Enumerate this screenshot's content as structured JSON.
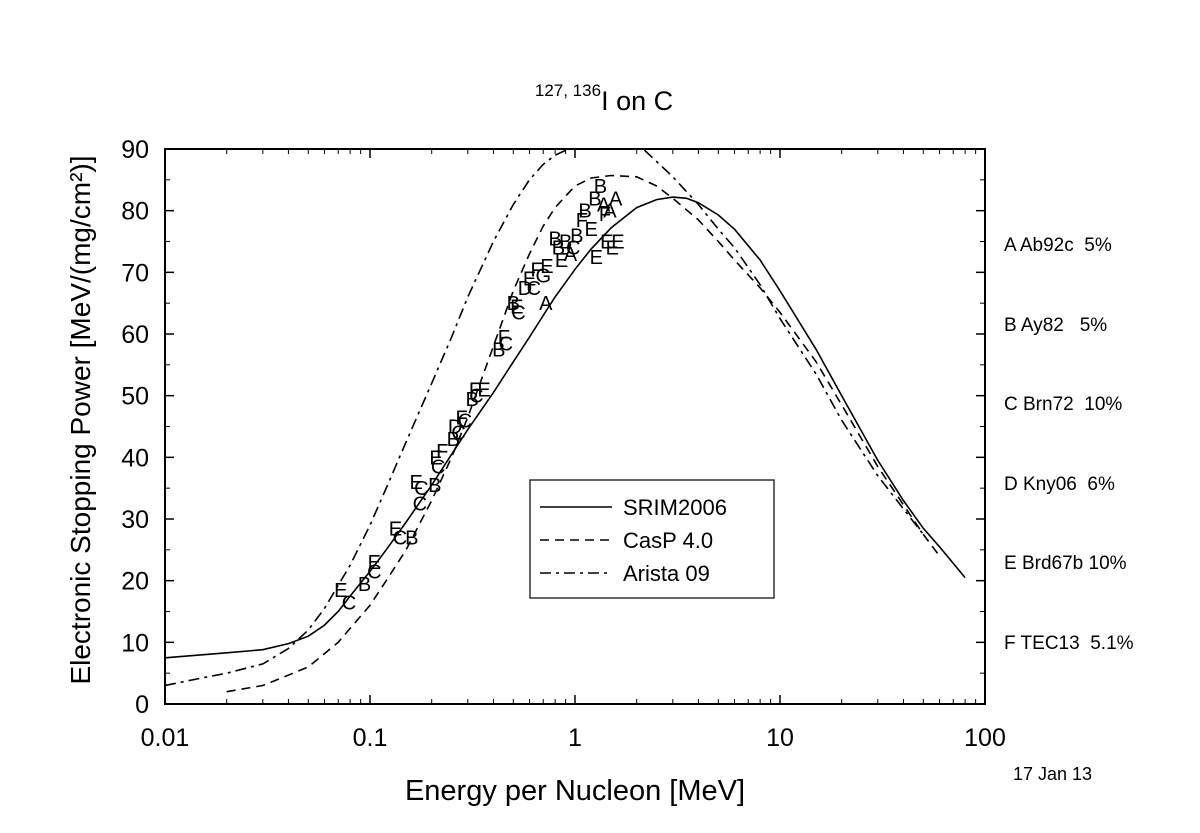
{
  "chart_data": {
    "type": "line",
    "title": {
      "sup": "127, 136",
      "main": "I on C"
    },
    "xlabel": "Energy per Nucleon [MeV]",
    "ylabel": "Electronic Stopping Power [MeV/(mg/cm²)]",
    "xscale": "log",
    "xlim": [
      0.01,
      100
    ],
    "ylim": [
      0,
      90
    ],
    "xticks": [
      {
        "value": 0.01,
        "label": "0.01"
      },
      {
        "value": 0.1,
        "label": "0.1"
      },
      {
        "value": 1,
        "label": "1"
      },
      {
        "value": 10,
        "label": "10"
      },
      {
        "value": 100,
        "label": "100"
      }
    ],
    "yticks": [
      {
        "value": 0,
        "label": "0"
      },
      {
        "value": 10,
        "label": "10"
      },
      {
        "value": 20,
        "label": "20"
      },
      {
        "value": 30,
        "label": "30"
      },
      {
        "value": 40,
        "label": "40"
      },
      {
        "value": 50,
        "label": "50"
      },
      {
        "value": 60,
        "label": "60"
      },
      {
        "value": 70,
        "label": "70"
      },
      {
        "value": 80,
        "label": "80"
      },
      {
        "value": 90,
        "label": "90"
      }
    ],
    "grid": false,
    "legend_position": "center",
    "series": [
      {
        "name": "SRIM2006",
        "style": "solid",
        "points": [
          [
            0.01,
            7.5
          ],
          [
            0.02,
            8.3
          ],
          [
            0.03,
            8.8
          ],
          [
            0.04,
            9.8
          ],
          [
            0.05,
            11
          ],
          [
            0.06,
            12.8
          ],
          [
            0.07,
            15
          ],
          [
            0.08,
            17.5
          ],
          [
            0.1,
            21.5
          ],
          [
            0.12,
            25
          ],
          [
            0.15,
            29.5
          ],
          [
            0.2,
            35.5
          ],
          [
            0.25,
            40.5
          ],
          [
            0.3,
            44.5
          ],
          [
            0.4,
            50.5
          ],
          [
            0.5,
            55.5
          ],
          [
            0.6,
            59.5
          ],
          [
            0.7,
            63
          ],
          [
            0.8,
            66
          ],
          [
            1,
            70.5
          ],
          [
            1.2,
            73.8
          ],
          [
            1.5,
            77.2
          ],
          [
            2,
            80.5
          ],
          [
            2.5,
            81.8
          ],
          [
            3,
            82.2
          ],
          [
            3.5,
            82
          ],
          [
            4,
            81.3
          ],
          [
            5,
            79.3
          ],
          [
            6,
            77
          ],
          [
            8,
            72
          ],
          [
            10,
            67
          ],
          [
            15,
            57.5
          ],
          [
            20,
            50
          ],
          [
            30,
            39.5
          ],
          [
            40,
            33
          ],
          [
            50,
            28.5
          ],
          [
            60,
            25.5
          ],
          [
            80,
            20.5
          ]
        ]
      },
      {
        "name": "CasP 4.0",
        "style": "dashed",
        "points": [
          [
            0.02,
            2
          ],
          [
            0.03,
            3
          ],
          [
            0.05,
            6
          ],
          [
            0.07,
            10
          ],
          [
            0.1,
            16
          ],
          [
            0.12,
            20
          ],
          [
            0.15,
            25
          ],
          [
            0.2,
            33
          ],
          [
            0.25,
            40
          ],
          [
            0.3,
            46.5
          ],
          [
            0.4,
            58
          ],
          [
            0.5,
            67
          ],
          [
            0.6,
            73
          ],
          [
            0.7,
            77.5
          ],
          [
            0.8,
            80.5
          ],
          [
            1,
            84
          ],
          [
            1.2,
            85.3
          ],
          [
            1.5,
            85.7
          ],
          [
            2,
            85.5
          ],
          [
            2.5,
            84
          ],
          [
            3,
            82
          ],
          [
            4,
            78.5
          ],
          [
            5,
            75
          ],
          [
            6,
            72
          ],
          [
            8,
            67.5
          ],
          [
            10,
            63.5
          ],
          [
            15,
            55.5
          ],
          [
            20,
            48.5
          ],
          [
            30,
            38.5
          ],
          [
            50,
            27.5
          ],
          [
            60,
            24
          ]
        ]
      },
      {
        "name": "Arista 09",
        "style": "dashdot",
        "points": [
          [
            0.01,
            3
          ],
          [
            0.015,
            4.2
          ],
          [
            0.02,
            5
          ],
          [
            0.03,
            6.5
          ],
          [
            0.04,
            9
          ],
          [
            0.05,
            12
          ],
          [
            0.06,
            15.5
          ],
          [
            0.08,
            22.5
          ],
          [
            0.1,
            29
          ],
          [
            0.12,
            35
          ],
          [
            0.15,
            42.5
          ],
          [
            0.2,
            52
          ],
          [
            0.25,
            59.5
          ],
          [
            0.3,
            66
          ],
          [
            0.4,
            75
          ],
          [
            0.5,
            81
          ],
          [
            0.6,
            85
          ],
          [
            0.7,
            87.5
          ],
          [
            0.8,
            89
          ],
          [
            1,
            90.5
          ],
          [
            1.5,
            92
          ],
          [
            2,
            91
          ],
          [
            3,
            85.5
          ],
          [
            4,
            81
          ],
          [
            5,
            77
          ],
          [
            6,
            74
          ],
          [
            8,
            68
          ],
          [
            10,
            62.5
          ],
          [
            15,
            53.5
          ],
          [
            20,
            46
          ],
          [
            30,
            37
          ],
          [
            50,
            27.5
          ]
        ]
      }
    ],
    "data_points": [
      {
        "label": "E",
        "x": 0.072,
        "y": 18.5
      },
      {
        "label": "C",
        "x": 0.079,
        "y": 16.5
      },
      {
        "label": "B",
        "x": 0.094,
        "y": 19.5
      },
      {
        "label": "E",
        "x": 0.105,
        "y": 23
      },
      {
        "label": "C",
        "x": 0.105,
        "y": 21.5
      },
      {
        "label": "E",
        "x": 0.133,
        "y": 28.5
      },
      {
        "label": "C",
        "x": 0.14,
        "y": 27
      },
      {
        "label": "B",
        "x": 0.16,
        "y": 27
      },
      {
        "label": "E",
        "x": 0.168,
        "y": 36
      },
      {
        "label": "C",
        "x": 0.178,
        "y": 35
      },
      {
        "label": "C",
        "x": 0.175,
        "y": 32.5
      },
      {
        "label": "B",
        "x": 0.207,
        "y": 35.5
      },
      {
        "label": "C",
        "x": 0.215,
        "y": 38.5
      },
      {
        "label": "E",
        "x": 0.21,
        "y": 40
      },
      {
        "label": "F",
        "x": 0.225,
        "y": 41
      },
      {
        "label": "B",
        "x": 0.255,
        "y": 43
      },
      {
        "label": "D",
        "x": 0.26,
        "y": 45
      },
      {
        "label": "C",
        "x": 0.27,
        "y": 44
      },
      {
        "label": "F",
        "x": 0.28,
        "y": 46.5
      },
      {
        "label": "C",
        "x": 0.29,
        "y": 46
      },
      {
        "label": "B",
        "x": 0.315,
        "y": 49.5
      },
      {
        "label": "F",
        "x": 0.325,
        "y": 51
      },
      {
        "label": "C",
        "x": 0.33,
        "y": 50
      },
      {
        "label": "E",
        "x": 0.36,
        "y": 51
      },
      {
        "label": "B",
        "x": 0.425,
        "y": 57.5
      },
      {
        "label": "F",
        "x": 0.45,
        "y": 59.5
      },
      {
        "label": "C",
        "x": 0.46,
        "y": 58.5
      },
      {
        "label": "B",
        "x": 0.5,
        "y": 65
      },
      {
        "label": "E",
        "x": 0.52,
        "y": 64.5
      },
      {
        "label": "C",
        "x": 0.53,
        "y": 63.5
      },
      {
        "label": "D",
        "x": 0.57,
        "y": 67.5
      },
      {
        "label": "E",
        "x": 0.6,
        "y": 69
      },
      {
        "label": "C",
        "x": 0.63,
        "y": 67.5
      },
      {
        "label": "F",
        "x": 0.65,
        "y": 70.5
      },
      {
        "label": "G",
        "x": 0.7,
        "y": 69.5
      },
      {
        "label": "A",
        "x": 0.72,
        "y": 65
      },
      {
        "label": "E",
        "x": 0.73,
        "y": 71
      },
      {
        "label": "B",
        "x": 0.8,
        "y": 75.5
      },
      {
        "label": "B",
        "x": 0.83,
        "y": 74
      },
      {
        "label": "E",
        "x": 0.86,
        "y": 72
      },
      {
        "label": "B",
        "x": 0.9,
        "y": 75
      },
      {
        "label": "A",
        "x": 0.95,
        "y": 73
      },
      {
        "label": "C",
        "x": 0.98,
        "y": 74
      },
      {
        "label": "B",
        "x": 1.02,
        "y": 76
      },
      {
        "label": "F",
        "x": 1.08,
        "y": 78.5
      },
      {
        "label": "B",
        "x": 1.12,
        "y": 80
      },
      {
        "label": "E",
        "x": 1.2,
        "y": 77
      },
      {
        "label": "B",
        "x": 1.25,
        "y": 82
      },
      {
        "label": "E",
        "x": 1.27,
        "y": 72.5
      },
      {
        "label": "B",
        "x": 1.33,
        "y": 84
      },
      {
        "label": "A",
        "x": 1.38,
        "y": 81
      },
      {
        "label": "F",
        "x": 1.4,
        "y": 79.5
      },
      {
        "label": "E",
        "x": 1.43,
        "y": 75
      },
      {
        "label": "A",
        "x": 1.48,
        "y": 80
      },
      {
        "label": "E",
        "x": 1.52,
        "y": 74
      },
      {
        "label": "A",
        "x": 1.58,
        "y": 82
      },
      {
        "label": "E",
        "x": 1.62,
        "y": 75
      }
    ]
  },
  "side_legend": [
    "A Ab92c  5%",
    "B Ay82   5%",
    "C Brn72  10%",
    "D Kny06  6%",
    "E Brd67b 10%",
    "F TEC13  5.1%"
  ],
  "date_stamp": "17 Jan 13"
}
